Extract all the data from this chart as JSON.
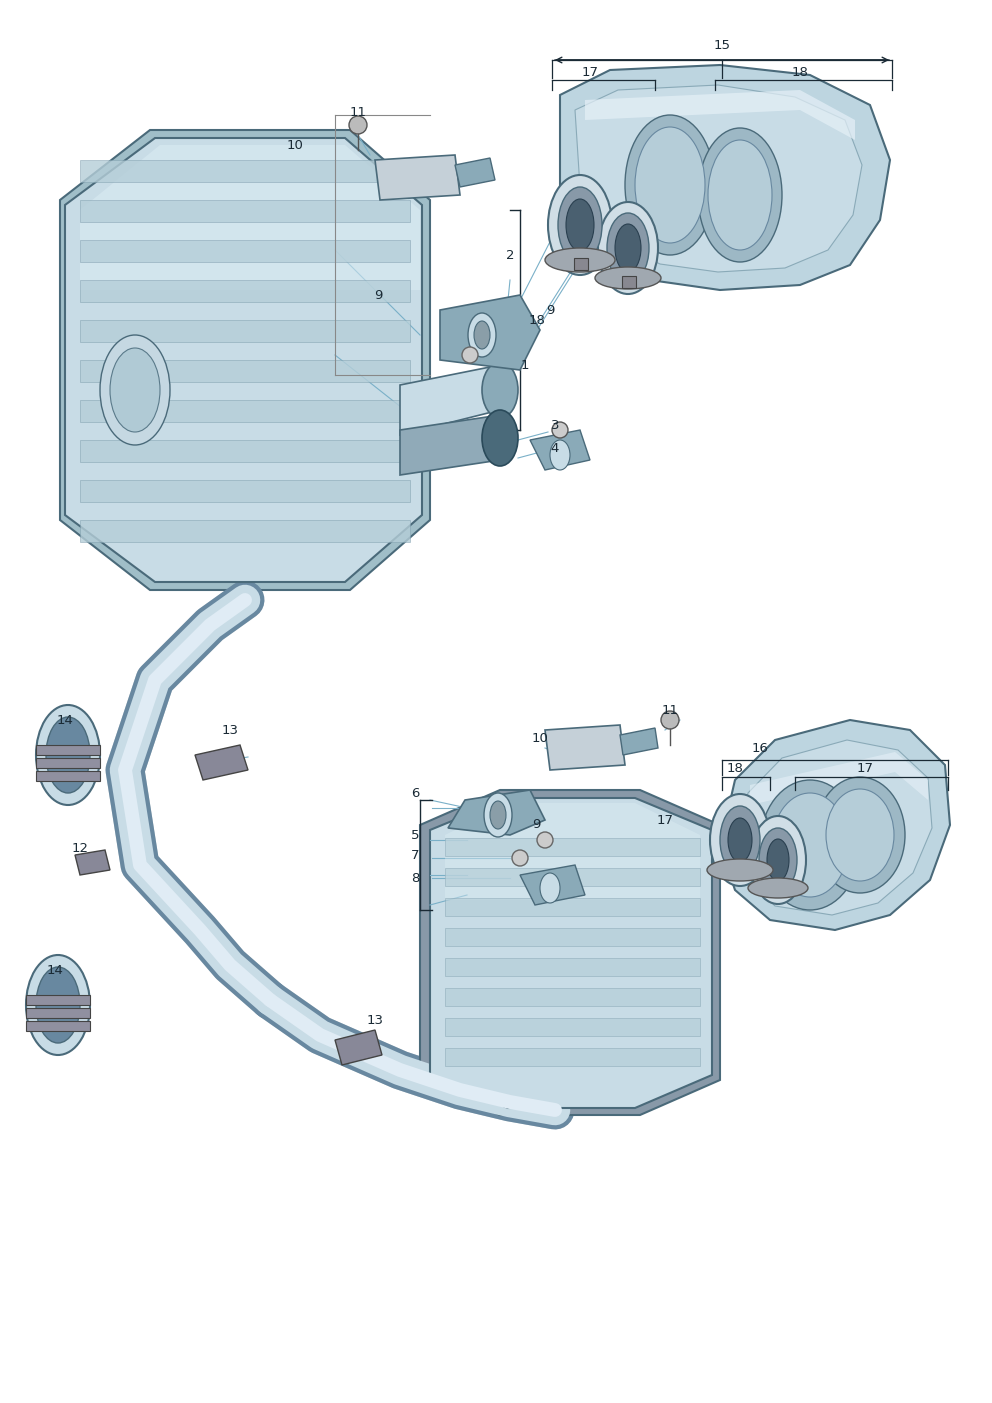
{
  "bg_color": "#ffffff",
  "line_color": "#1a2a35",
  "part_color_light": "#c8dce6",
  "part_color_mid": "#8aaab8",
  "part_color_dark": "#4a6a7a",
  "part_color_rim": "#d8e8f0",
  "part_color_shadow": "#6888a0",
  "leader_color": "#7ab0c8",
  "figsize": [
    9.92,
    14.03
  ],
  "dpi": 100,
  "label_fontsize": 9.5,
  "label_color": "#1a2a35"
}
